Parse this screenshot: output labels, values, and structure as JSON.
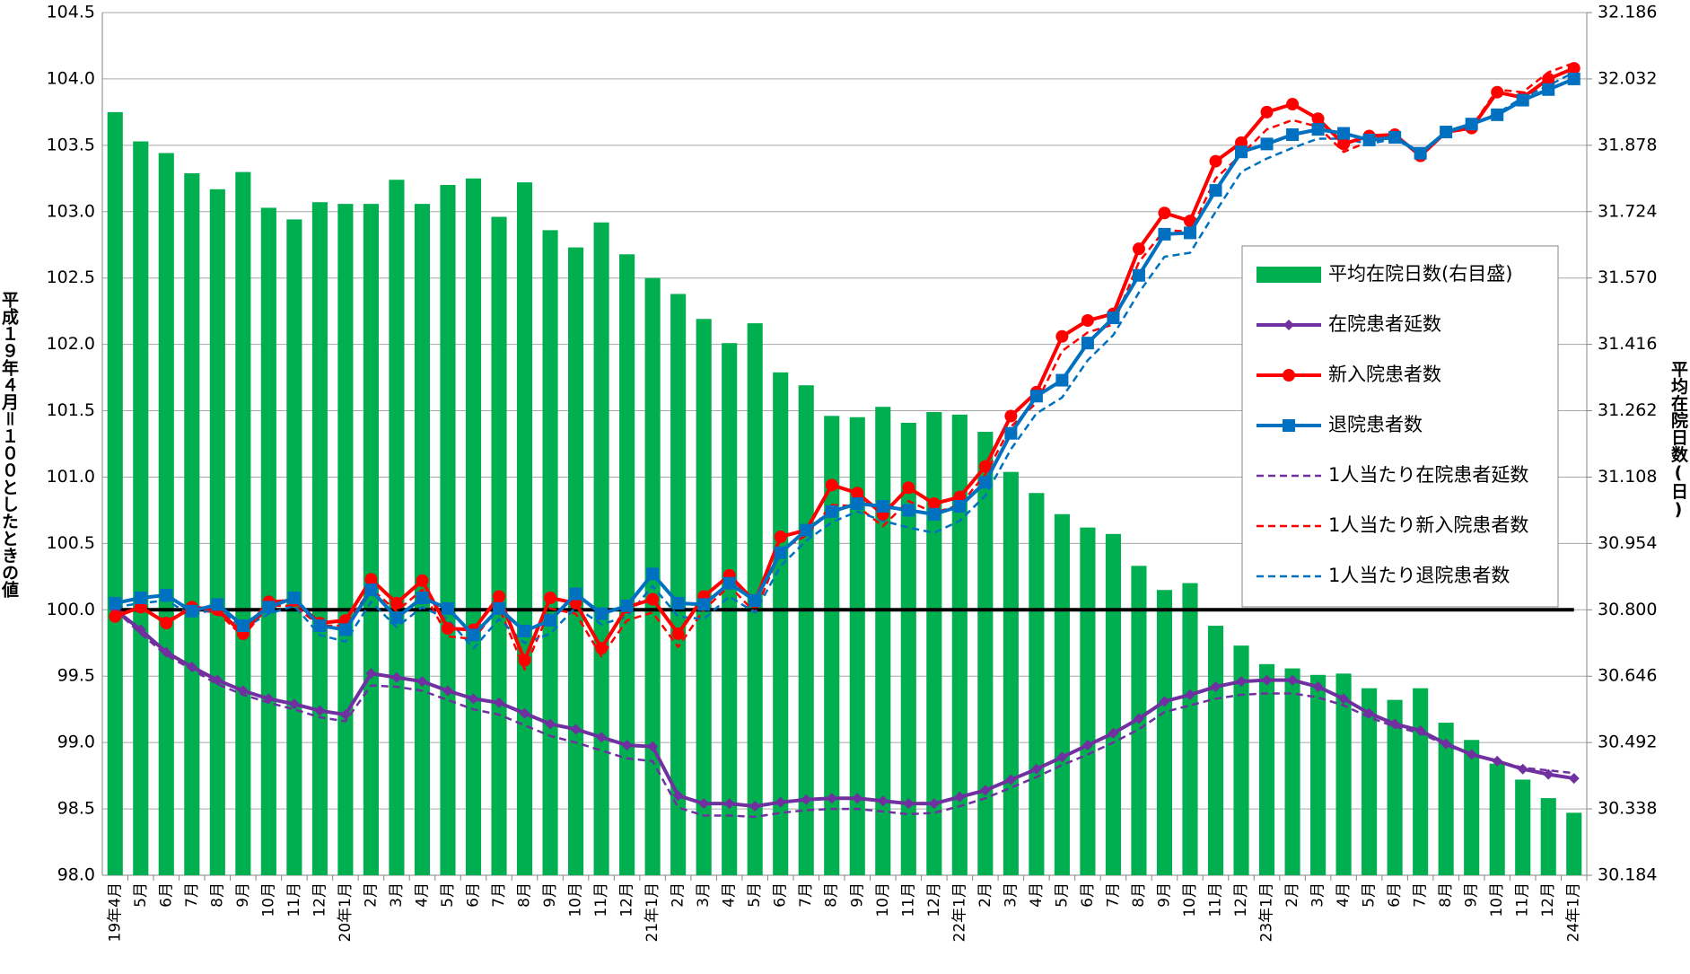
{
  "chart_data": {
    "type": "bar_line",
    "y_label": "平成１９年４月＝１００としたときの値",
    "y2_label": "平均在院日数(日)",
    "categories": [
      "19年4月",
      "5月",
      "6月",
      "7月",
      "8月",
      "9月",
      "10月",
      "11月",
      "12月",
      "20年1月",
      "2月",
      "3月",
      "4月",
      "5月",
      "6月",
      "7月",
      "8月",
      "9月",
      "10月",
      "11月",
      "12月",
      "21年1月",
      "2月",
      "3月",
      "4月",
      "5月",
      "6月",
      "7月",
      "8月",
      "9月",
      "10月",
      "11月",
      "12月",
      "22年1月",
      "2月",
      "3月",
      "4月",
      "5月",
      "6月",
      "7月",
      "8月",
      "9月",
      "10月",
      "11月",
      "12月",
      "23年1月",
      "2月",
      "3月",
      "4月",
      "5月",
      "6月",
      "7月",
      "8月",
      "9月",
      "10月",
      "11月",
      "12月",
      "24年1月"
    ],
    "ylim": [
      98.0,
      104.5
    ],
    "yticks": [
      {
        "value": 98.0,
        "label": "98.0"
      },
      98.5,
      {
        "value": 99.0,
        "label": "99.0"
      },
      99.5,
      {
        "value": 100.0,
        "label": "100.0"
      },
      100.5,
      {
        "value": 101.0,
        "label": "101.0"
      },
      101.5,
      {
        "value": 102.0,
        "label": "102.0"
      },
      102.5,
      {
        "value": 103.0,
        "label": "103.0"
      },
      103.5,
      {
        "value": 104.0,
        "label": "104.0"
      },
      104.5
    ],
    "y2lim": [
      30.184,
      32.186
    ],
    "y2ticks": [
      30.184,
      30.338,
      30.492,
      30.646,
      {
        "value": 30.8,
        "label": "30.800"
      },
      30.954,
      31.108,
      31.262,
      31.416,
      {
        "value": 31.57,
        "label": "31.570"
      },
      31.724,
      31.878,
      32.032,
      32.186
    ],
    "grid": true,
    "reference_line": 100.0,
    "series": [
      {
        "name": "平均在院日数(右目盛)",
        "type": "bar",
        "axis": "y2",
        "color": "#00b050",
        "values": [
          31.955,
          31.887,
          31.86,
          31.813,
          31.776,
          31.816,
          31.733,
          31.706,
          31.746,
          31.742,
          31.742,
          31.798,
          31.742,
          31.786,
          31.801,
          31.712,
          31.792,
          31.681,
          31.641,
          31.699,
          31.625,
          31.57,
          31.533,
          31.475,
          31.419,
          31.465,
          31.351,
          31.321,
          31.25,
          31.247,
          31.271,
          31.234,
          31.259,
          31.253,
          31.213,
          31.12,
          31.071,
          31.022,
          30.991,
          30.976,
          30.902,
          30.846,
          30.862,
          30.763,
          30.717,
          30.674,
          30.664,
          30.649,
          30.652,
          30.618,
          30.591,
          30.618,
          30.538,
          30.498,
          30.443,
          30.406,
          30.363,
          30.329
        ]
      },
      {
        "name": "在院患者延数",
        "type": "line",
        "color": "#7030a0",
        "dash": false,
        "marker": "diamond",
        "values": [
          100.0,
          99.85,
          99.68,
          99.57,
          99.47,
          99.39,
          99.33,
          99.29,
          99.24,
          99.21,
          99.52,
          99.49,
          99.46,
          99.39,
          99.33,
          99.3,
          99.22,
          99.14,
          99.1,
          99.04,
          98.98,
          98.97,
          98.6,
          98.54,
          98.54,
          98.52,
          98.55,
          98.57,
          98.58,
          98.58,
          98.56,
          98.54,
          98.54,
          98.59,
          98.64,
          98.72,
          98.8,
          98.89,
          98.98,
          99.07,
          99.18,
          99.31,
          99.36,
          99.42,
          99.46,
          99.47,
          99.47,
          99.42,
          99.33,
          99.22,
          99.14,
          99.09,
          98.99,
          98.91,
          98.86,
          98.8,
          98.76,
          98.73
        ]
      },
      {
        "name": "新入院患者数",
        "type": "line",
        "color": "#ff0000",
        "dash": false,
        "marker": "circle",
        "values": [
          99.95,
          100.02,
          99.9,
          100.02,
          100.0,
          99.82,
          100.06,
          100.07,
          99.9,
          99.92,
          100.23,
          100.05,
          100.22,
          99.86,
          99.85,
          100.1,
          99.62,
          100.09,
          100.05,
          99.71,
          100.02,
          100.08,
          99.82,
          100.1,
          100.26,
          100.06,
          100.55,
          100.6,
          100.94,
          100.88,
          100.72,
          100.92,
          100.8,
          100.85,
          101.08,
          101.46,
          101.64,
          102.06,
          102.18,
          102.23,
          102.72,
          102.99,
          102.93,
          103.38,
          103.52,
          103.75,
          103.81,
          103.7,
          103.51,
          103.57,
          103.58,
          103.42,
          103.6,
          103.63,
          103.9,
          103.86,
          104.0,
          104.08
        ]
      },
      {
        "name": "退院患者数",
        "type": "line",
        "color": "#0070c0",
        "dash": false,
        "marker": "square",
        "values": [
          100.05,
          100.09,
          100.11,
          99.99,
          100.04,
          99.88,
          100.02,
          100.09,
          99.88,
          99.85,
          100.15,
          99.94,
          100.09,
          100.01,
          99.81,
          100.01,
          99.84,
          99.92,
          100.12,
          99.97,
          100.03,
          100.27,
          100.05,
          100.04,
          100.2,
          100.07,
          100.43,
          100.6,
          100.74,
          100.8,
          100.78,
          100.75,
          100.72,
          100.78,
          100.96,
          101.33,
          101.61,
          101.73,
          102.01,
          102.2,
          102.52,
          102.83,
          102.84,
          103.16,
          103.45,
          103.51,
          103.58,
          103.62,
          103.59,
          103.54,
          103.56,
          103.44,
          103.6,
          103.66,
          103.73,
          103.84,
          103.92,
          104.0
        ]
      },
      {
        "name": "1人当たり在院患者延数",
        "type": "line",
        "color": "#7030a0",
        "dash": true,
        "values": [
          100.0,
          99.82,
          99.66,
          99.55,
          99.44,
          99.36,
          99.3,
          99.25,
          99.19,
          99.16,
          99.43,
          99.42,
          99.39,
          99.32,
          99.25,
          99.21,
          99.13,
          99.05,
          99.0,
          98.94,
          98.88,
          98.86,
          98.51,
          98.45,
          98.45,
          98.44,
          98.47,
          98.49,
          98.5,
          98.5,
          98.48,
          98.46,
          98.47,
          98.52,
          98.58,
          98.66,
          98.74,
          98.83,
          98.91,
          99.0,
          99.1,
          99.23,
          99.28,
          99.33,
          99.36,
          99.37,
          99.37,
          99.34,
          99.28,
          99.19,
          99.12,
          99.07,
          98.98,
          98.91,
          98.86,
          98.81,
          98.79,
          98.77
        ]
      },
      {
        "name": "1人当たり新入院患者数",
        "type": "line",
        "color": "#ff0000",
        "dash": true,
        "values": [
          99.98,
          100.0,
          99.92,
          100.0,
          99.98,
          99.8,
          100.03,
          100.03,
          99.88,
          99.88,
          100.16,
          99.99,
          100.15,
          99.8,
          99.78,
          100.02,
          99.55,
          100.01,
          99.97,
          99.65,
          99.92,
          99.98,
          99.72,
          100.0,
          100.18,
          99.98,
          100.45,
          100.56,
          100.79,
          100.78,
          100.63,
          100.82,
          100.73,
          100.79,
          101.02,
          101.38,
          101.56,
          101.95,
          102.09,
          102.15,
          102.62,
          102.86,
          102.85,
          103.25,
          103.43,
          103.62,
          103.69,
          103.64,
          103.45,
          103.53,
          103.56,
          103.43,
          103.59,
          103.64,
          103.92,
          103.9,
          104.05,
          104.12
        ]
      },
      {
        "name": "1人当たり退院患者数",
        "type": "line",
        "color": "#0070c0",
        "dash": true,
        "values": [
          100.02,
          100.05,
          100.07,
          99.96,
          100.01,
          99.86,
          99.97,
          100.03,
          99.81,
          99.76,
          100.06,
          99.87,
          100.02,
          99.93,
          99.71,
          99.93,
          99.75,
          99.82,
          100.02,
          99.89,
          99.95,
          100.18,
          99.95,
          99.93,
          100.1,
          99.98,
          100.33,
          100.52,
          100.66,
          100.74,
          100.67,
          100.62,
          100.58,
          100.67,
          100.86,
          101.21,
          101.48,
          101.6,
          101.88,
          102.07,
          102.39,
          102.66,
          102.69,
          103.0,
          103.3,
          103.4,
          103.48,
          103.55,
          103.55,
          103.51,
          103.55,
          103.44,
          103.6,
          103.66,
          103.74,
          103.86,
          103.95,
          104.05
        ]
      }
    ]
  }
}
